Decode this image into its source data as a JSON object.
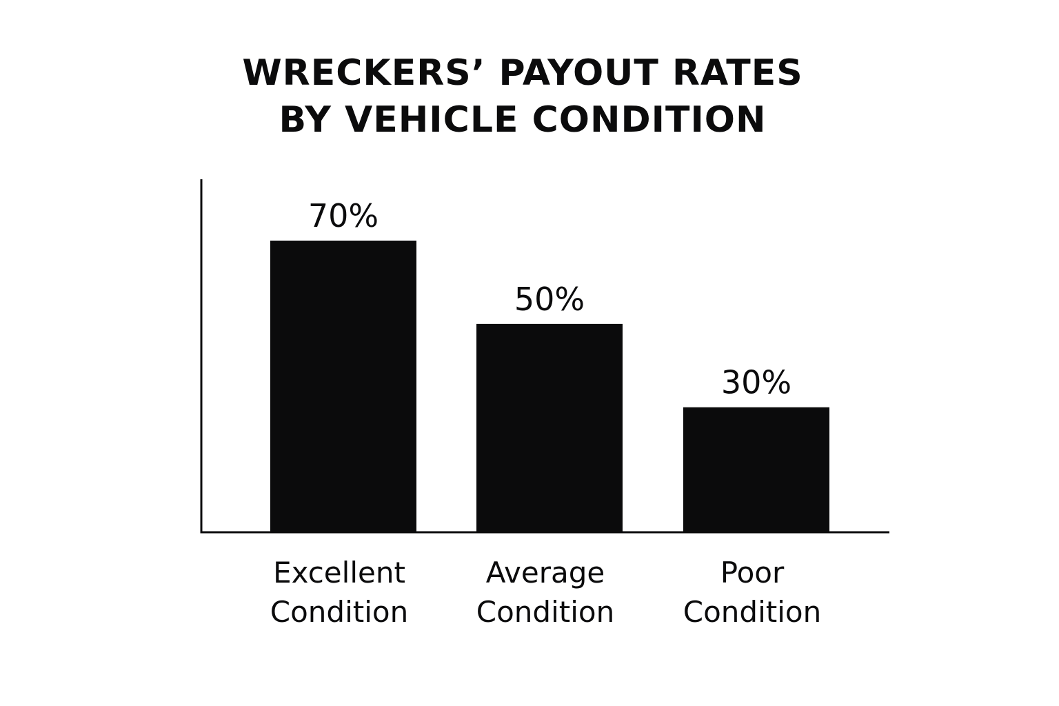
{
  "chart_data": {
    "type": "bar",
    "title_lines": [
      "WRECKERS’ PAYOUT RATES",
      "BY VEHICLE CONDITION"
    ],
    "categories": [
      [
        "Excellent",
        "Condition"
      ],
      [
        "Average",
        "Condition"
      ],
      [
        "Poor",
        "Condition"
      ]
    ],
    "values": [
      70,
      50,
      30
    ],
    "data_labels": [
      "70%",
      "50%",
      "30%"
    ],
    "ylim": [
      0,
      100
    ],
    "grid": false,
    "bar_color": "#0b0b0c",
    "axis_color": "#0b0b0c"
  }
}
